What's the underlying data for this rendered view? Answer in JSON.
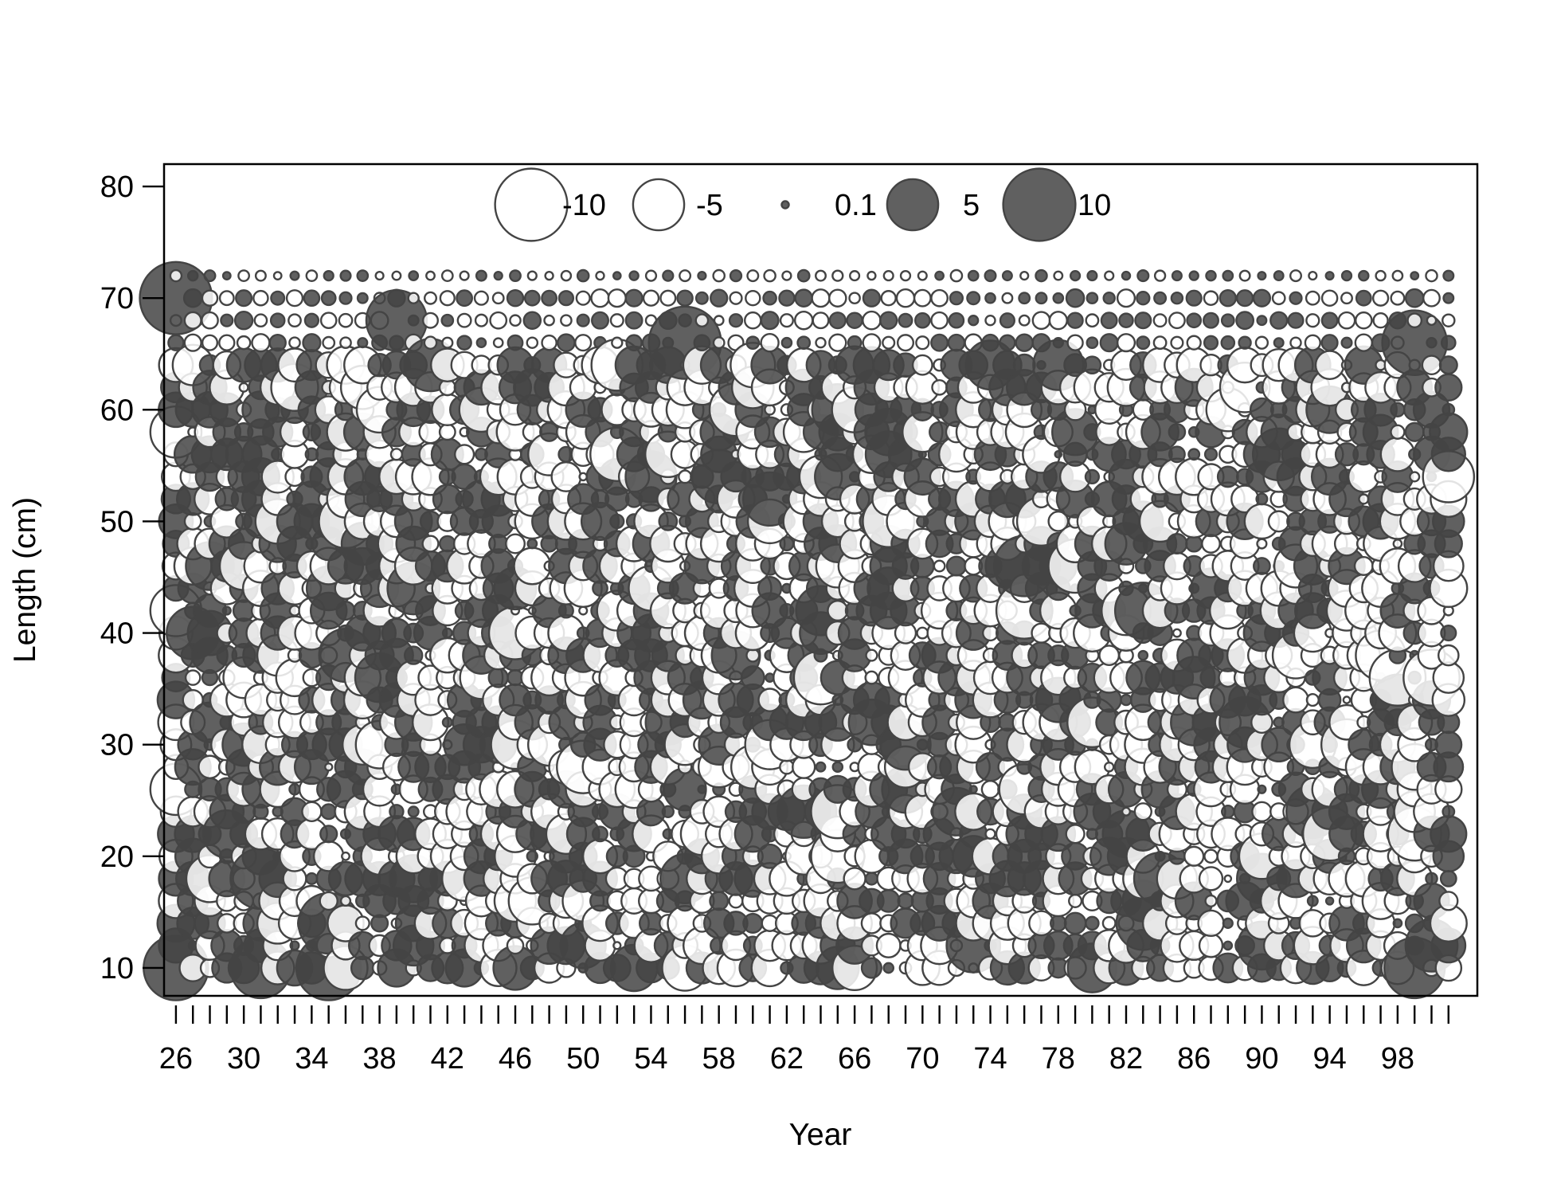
{
  "chart_data": {
    "type": "scatter",
    "subtype": "bubble-residuals",
    "title": "",
    "xlabel": "Year",
    "ylabel": "Length (cm)",
    "xlim": [
      1925.3,
      2002.7
    ],
    "ylim": [
      7.5,
      82
    ],
    "x_first_tick": 1926,
    "x_last_tick": 2001,
    "x_tick_labels": [
      "26",
      "30",
      "34",
      "38",
      "42",
      "46",
      "50",
      "54",
      "58",
      "62",
      "66",
      "70",
      "74",
      "78",
      "82",
      "86",
      "90",
      "94",
      "98"
    ],
    "x_tick_label_years": [
      1926,
      1930,
      1934,
      1938,
      1942,
      1946,
      1950,
      1954,
      1958,
      1962,
      1966,
      1970,
      1974,
      1978,
      1982,
      1986,
      1990,
      1994,
      1998
    ],
    "y_ticks": [
      10,
      20,
      30,
      40,
      50,
      60,
      70,
      80
    ],
    "y_tick_labels": [
      "10",
      "20",
      "30",
      "40",
      "50",
      "60",
      "70",
      "80"
    ],
    "length_bins": [
      10,
      12,
      14,
      16,
      18,
      20,
      22,
      24,
      26,
      28,
      30,
      32,
      34,
      36,
      38,
      40,
      42,
      44,
      46,
      48,
      50,
      52,
      54,
      56,
      58,
      60,
      62,
      64,
      66,
      68,
      70,
      72
    ],
    "legend": {
      "placement": "top-center",
      "entries": [
        {
          "label": "-10",
          "value": -10
        },
        {
          "label": "-5",
          "value": -5
        },
        {
          "label": "0.1",
          "value": 0.1
        },
        {
          "label": "5",
          "value": 5
        },
        {
          "label": "10",
          "value": 10
        }
      ]
    },
    "colors": {
      "positive_fill": "#444444",
      "positive_alpha": 0.85,
      "negative_fill": "#ffffff",
      "stroke": "#444444"
    },
    "notable_residuals": [
      {
        "year": 1926,
        "length": 70,
        "value": 10
      },
      {
        "year": 1926,
        "length": 10,
        "value": 8
      },
      {
        "year": 1931,
        "length": 10,
        "value": 7
      },
      {
        "year": 1935,
        "length": 10,
        "value": 8
      },
      {
        "year": 1939,
        "length": 68,
        "value": 7
      },
      {
        "year": 1956,
        "length": 66,
        "value": 10
      },
      {
        "year": 1999,
        "length": 66,
        "value": 8
      },
      {
        "year": 1999,
        "length": 10,
        "value": 7
      },
      {
        "year": 1931,
        "length": 18,
        "value": 7
      },
      {
        "year": 1935,
        "length": 14,
        "value": 7
      },
      {
        "year": 1976,
        "length": 46,
        "value": 7
      },
      {
        "year": 1983,
        "length": 42,
        "value": 6
      },
      {
        "year": 1926,
        "length": 42,
        "value": -5
      },
      {
        "year": 1926,
        "length": 58,
        "value": -5
      },
      {
        "year": 1926,
        "length": 26,
        "value": -5
      },
      {
        "year": 1976,
        "length": 42,
        "value": -6
      },
      {
        "year": 1998,
        "length": 36,
        "value": -6
      },
      {
        "year": 2000,
        "length": 36,
        "value": -6
      },
      {
        "year": 2001,
        "length": 54,
        "value": -5
      }
    ],
    "random_seed": 424242
  }
}
